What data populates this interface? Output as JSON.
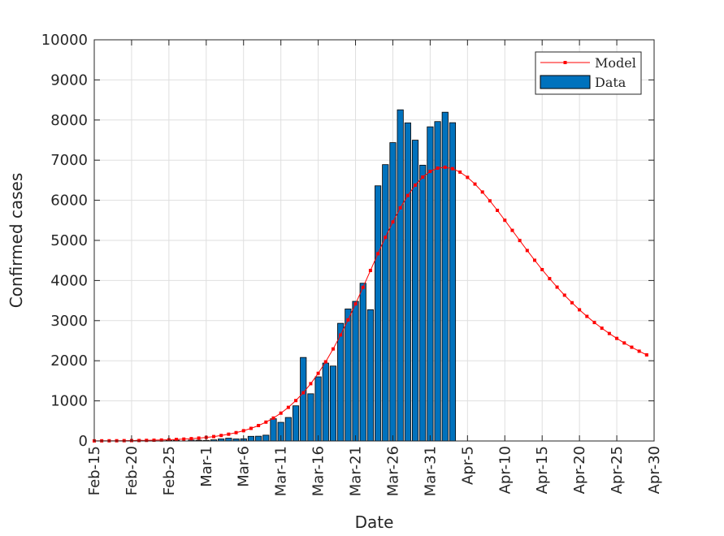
{
  "chart_data": {
    "type": "bar",
    "xlabel": "Date",
    "ylabel": "Confirmed cases",
    "ylim": [
      0,
      10000
    ],
    "xlim": [
      "Feb-15",
      "Apr-30"
    ],
    "year": 2020,
    "yticks": [
      0,
      1000,
      2000,
      3000,
      4000,
      5000,
      6000,
      7000,
      8000,
      9000,
      10000
    ],
    "xticks": [
      "Feb-15",
      "Feb-20",
      "Feb-25",
      "Mar-1",
      "Mar-6",
      "Mar-11",
      "Mar-16",
      "Mar-21",
      "Mar-26",
      "Mar-31",
      "Apr-5",
      "Apr-10",
      "Apr-15",
      "Apr-20",
      "Apr-25",
      "Apr-30"
    ],
    "grid": true,
    "legend_position": "top-right",
    "series": [
      {
        "name": "Model",
        "kind": "line",
        "color": "#ff0000",
        "marker": "square",
        "x": [
          "Feb-15",
          "Feb-16",
          "Feb-17",
          "Feb-18",
          "Feb-19",
          "Feb-20",
          "Feb-21",
          "Feb-22",
          "Feb-23",
          "Feb-24",
          "Feb-25",
          "Feb-26",
          "Feb-27",
          "Feb-28",
          "Feb-29",
          "Mar-1",
          "Mar-2",
          "Mar-3",
          "Mar-4",
          "Mar-5",
          "Mar-6",
          "Mar-7",
          "Mar-8",
          "Mar-9",
          "Mar-10",
          "Mar-11",
          "Mar-12",
          "Mar-13",
          "Mar-14",
          "Mar-15",
          "Mar-16",
          "Mar-17",
          "Mar-18",
          "Mar-19",
          "Mar-20",
          "Mar-21",
          "Mar-22",
          "Mar-23",
          "Mar-24",
          "Mar-25",
          "Mar-26",
          "Mar-27",
          "Mar-28",
          "Mar-29",
          "Mar-30",
          "Mar-31",
          "Apr-1",
          "Apr-2",
          "Apr-3",
          "Apr-4",
          "Apr-5",
          "Apr-6",
          "Apr-7",
          "Apr-8",
          "Apr-9",
          "Apr-10",
          "Apr-11",
          "Apr-12",
          "Apr-13",
          "Apr-14",
          "Apr-15",
          "Apr-16",
          "Apr-17",
          "Apr-18",
          "Apr-19",
          "Apr-20",
          "Apr-21",
          "Apr-22",
          "Apr-23",
          "Apr-24",
          "Apr-25",
          "Apr-26",
          "Apr-27",
          "Apr-28",
          "Apr-29"
        ],
        "values": [
          3,
          4,
          5,
          6,
          8,
          10,
          12,
          15,
          19,
          24,
          30,
          38,
          47,
          58,
          72,
          89,
          110,
          137,
          169,
          208,
          256,
          314,
          385,
          470,
          572,
          694,
          838,
          1007,
          1203,
          1429,
          1686,
          1974,
          2294,
          2643,
          3019,
          3417,
          3830,
          4250,
          4669,
          5076,
          5460,
          5811,
          6119,
          6377,
          6578,
          6720,
          6801,
          6823,
          6788,
          6702,
          6571,
          6404,
          6206,
          5986,
          5749,
          5502,
          5250,
          4997,
          4748,
          4505,
          4271,
          4047,
          3835,
          3634,
          3446,
          3270,
          3106,
          2953,
          2811,
          2679,
          2557,
          2443,
          2337,
          2238,
          2146
        ]
      },
      {
        "name": "Data",
        "kind": "bar",
        "color": "#0072bd",
        "x": [
          "Feb-21",
          "Feb-22",
          "Feb-23",
          "Feb-24",
          "Feb-25",
          "Feb-26",
          "Feb-27",
          "Feb-28",
          "Feb-29",
          "Mar-1",
          "Mar-2",
          "Mar-3",
          "Mar-4",
          "Mar-5",
          "Mar-6",
          "Mar-7",
          "Mar-8",
          "Mar-9",
          "Mar-10",
          "Mar-11",
          "Mar-12",
          "Mar-13",
          "Mar-14",
          "Mar-15",
          "Mar-16",
          "Mar-17",
          "Mar-18",
          "Mar-19",
          "Mar-20",
          "Mar-21",
          "Mar-22",
          "Mar-23",
          "Mar-24",
          "Mar-25",
          "Mar-26",
          "Mar-27",
          "Mar-28",
          "Mar-29",
          "Mar-30",
          "Mar-31",
          "Apr-1",
          "Apr-2",
          "Apr-3"
        ],
        "values": [
          16,
          9,
          0,
          4,
          12,
          17,
          0,
          23,
          19,
          14,
          28,
          51,
          69,
          51,
          55,
          116,
          119,
          145,
          555,
          465,
          586,
          877,
          2082,
          1177,
          1599,
          1942,
          1868,
          2933,
          3291,
          3481,
          3932,
          3272,
          6361,
          6889,
          7437,
          8255,
          7930,
          7498,
          6875,
          7831,
          7961,
          8195,
          7934
        ]
      }
    ]
  }
}
